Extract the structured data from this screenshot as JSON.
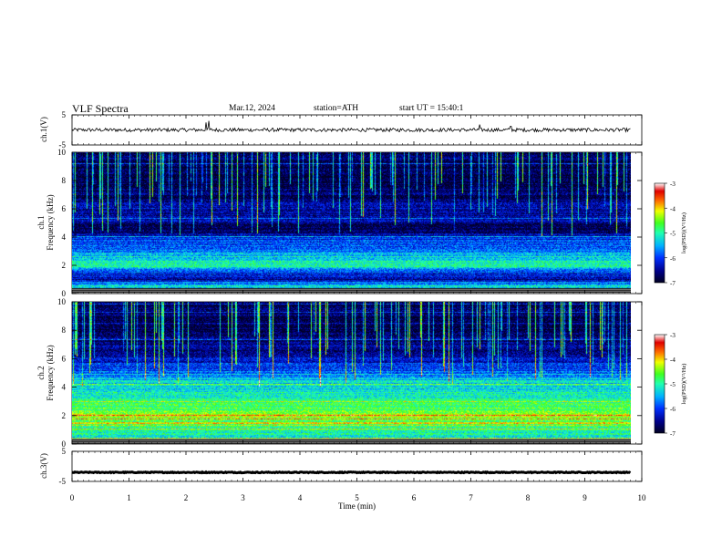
{
  "header": {
    "title": "VLF Spectra",
    "date": "Mar.12, 2024",
    "station": "station=ATH",
    "start": "start UT =  15:40:1"
  },
  "colors": {
    "spectrogram_scale": [
      "#000020",
      "#00008c",
      "#0030ff",
      "#00b0ff",
      "#20ffb0",
      "#40ff20",
      "#f0ff00",
      "#ff7000",
      "#e00000",
      "#ffffff"
    ]
  },
  "chart_data": [
    {
      "type": "line",
      "name": "ch1-waveform",
      "ylabel": "ch.1(V)",
      "ylim": [
        -5,
        5
      ],
      "yticks": [
        "5",
        "-5"
      ],
      "x_range": [
        0,
        9.8
      ],
      "y_baseline": 0,
      "noise_amplitude": 0.6,
      "spikes": [
        {
          "x": 2.35,
          "y": 2.5
        },
        {
          "x": 2.4,
          "y": 3.0
        },
        {
          "x": 7.15,
          "y": 1.8
        },
        {
          "x": 7.7,
          "y": 1.2
        }
      ]
    },
    {
      "type": "heatmap",
      "name": "ch1-spectrogram",
      "ylabel": "ch.1\nFrequency (kHz)",
      "ylabel_line1": "ch.1",
      "ylabel_line2": "Frequency (kHz)",
      "ylim": [
        0,
        10
      ],
      "yticks": [
        "0",
        "2",
        "4",
        "6",
        "8",
        "10"
      ],
      "x_range": [
        0,
        9.8
      ],
      "colorbar": {
        "label": "log(PSD)(V²/Hz)",
        "ticks": [
          "-3",
          "-4",
          "-5",
          "-6",
          "-7"
        ],
        "range": [
          -7,
          -3
        ]
      },
      "level_profile": [
        {
          "f": 0.0,
          "psd": -5.6
        },
        {
          "f": 0.6,
          "psd": -5.3
        },
        {
          "f": 1.0,
          "psd": -6.5
        },
        {
          "f": 1.5,
          "psd": -6.1
        },
        {
          "f": 2.0,
          "psd": -5.0
        },
        {
          "f": 2.5,
          "psd": -5.2
        },
        {
          "f": 3.0,
          "psd": -5.6
        },
        {
          "f": 4.0,
          "psd": -6.1
        },
        {
          "f": 4.6,
          "psd": -6.9
        },
        {
          "f": 5.2,
          "psd": -6.5
        },
        {
          "f": 6.0,
          "psd": -6.4
        },
        {
          "f": 7.0,
          "psd": -6.7
        },
        {
          "f": 8.0,
          "psd": -6.8
        },
        {
          "f": 10.0,
          "psd": -6.7
        }
      ]
    },
    {
      "type": "heatmap",
      "name": "ch2-spectrogram",
      "ylabel": "ch.2\nFrequency (kHz)",
      "ylabel_line1": "ch.2",
      "ylabel_line2": "Frequency (kHz)",
      "ylim": [
        0,
        10
      ],
      "yticks": [
        "0",
        "2",
        "4",
        "6",
        "8",
        "10"
      ],
      "x_range": [
        0,
        9.8
      ],
      "colorbar": {
        "label": "log(PSD)(V²/Hz)",
        "ticks": [
          "-3",
          "-4",
          "-5",
          "-6",
          "-7"
        ],
        "range": [
          -7,
          -3
        ]
      },
      "level_profile": [
        {
          "f": 0.0,
          "psd": -5.4
        },
        {
          "f": 1.0,
          "psd": -5.0
        },
        {
          "f": 1.8,
          "psd": -4.7
        },
        {
          "f": 2.0,
          "psd": -4.2
        },
        {
          "f": 2.2,
          "psd": -4.7
        },
        {
          "f": 3.0,
          "psd": -4.9
        },
        {
          "f": 3.8,
          "psd": -5.2
        },
        {
          "f": 4.5,
          "psd": -5.3
        },
        {
          "f": 5.0,
          "psd": -5.8
        },
        {
          "f": 6.0,
          "psd": -6.3
        },
        {
          "f": 7.0,
          "psd": -6.6
        },
        {
          "f": 8.0,
          "psd": -6.8
        },
        {
          "f": 10.0,
          "psd": -6.7
        }
      ]
    },
    {
      "type": "line",
      "name": "ch3-waveform",
      "ylabel": "ch.3(V)",
      "ylim": [
        -5,
        5
      ],
      "yticks": [
        "5",
        "-5"
      ],
      "x_range": [
        0,
        9.8
      ],
      "y_baseline": -2,
      "noise_amplitude": 0.15
    }
  ],
  "xaxis": {
    "label": "Time (min)",
    "range": [
      0,
      10
    ],
    "ticks": [
      "0",
      "1",
      "2",
      "3",
      "4",
      "5",
      "6",
      "7",
      "8",
      "9",
      "10"
    ]
  }
}
